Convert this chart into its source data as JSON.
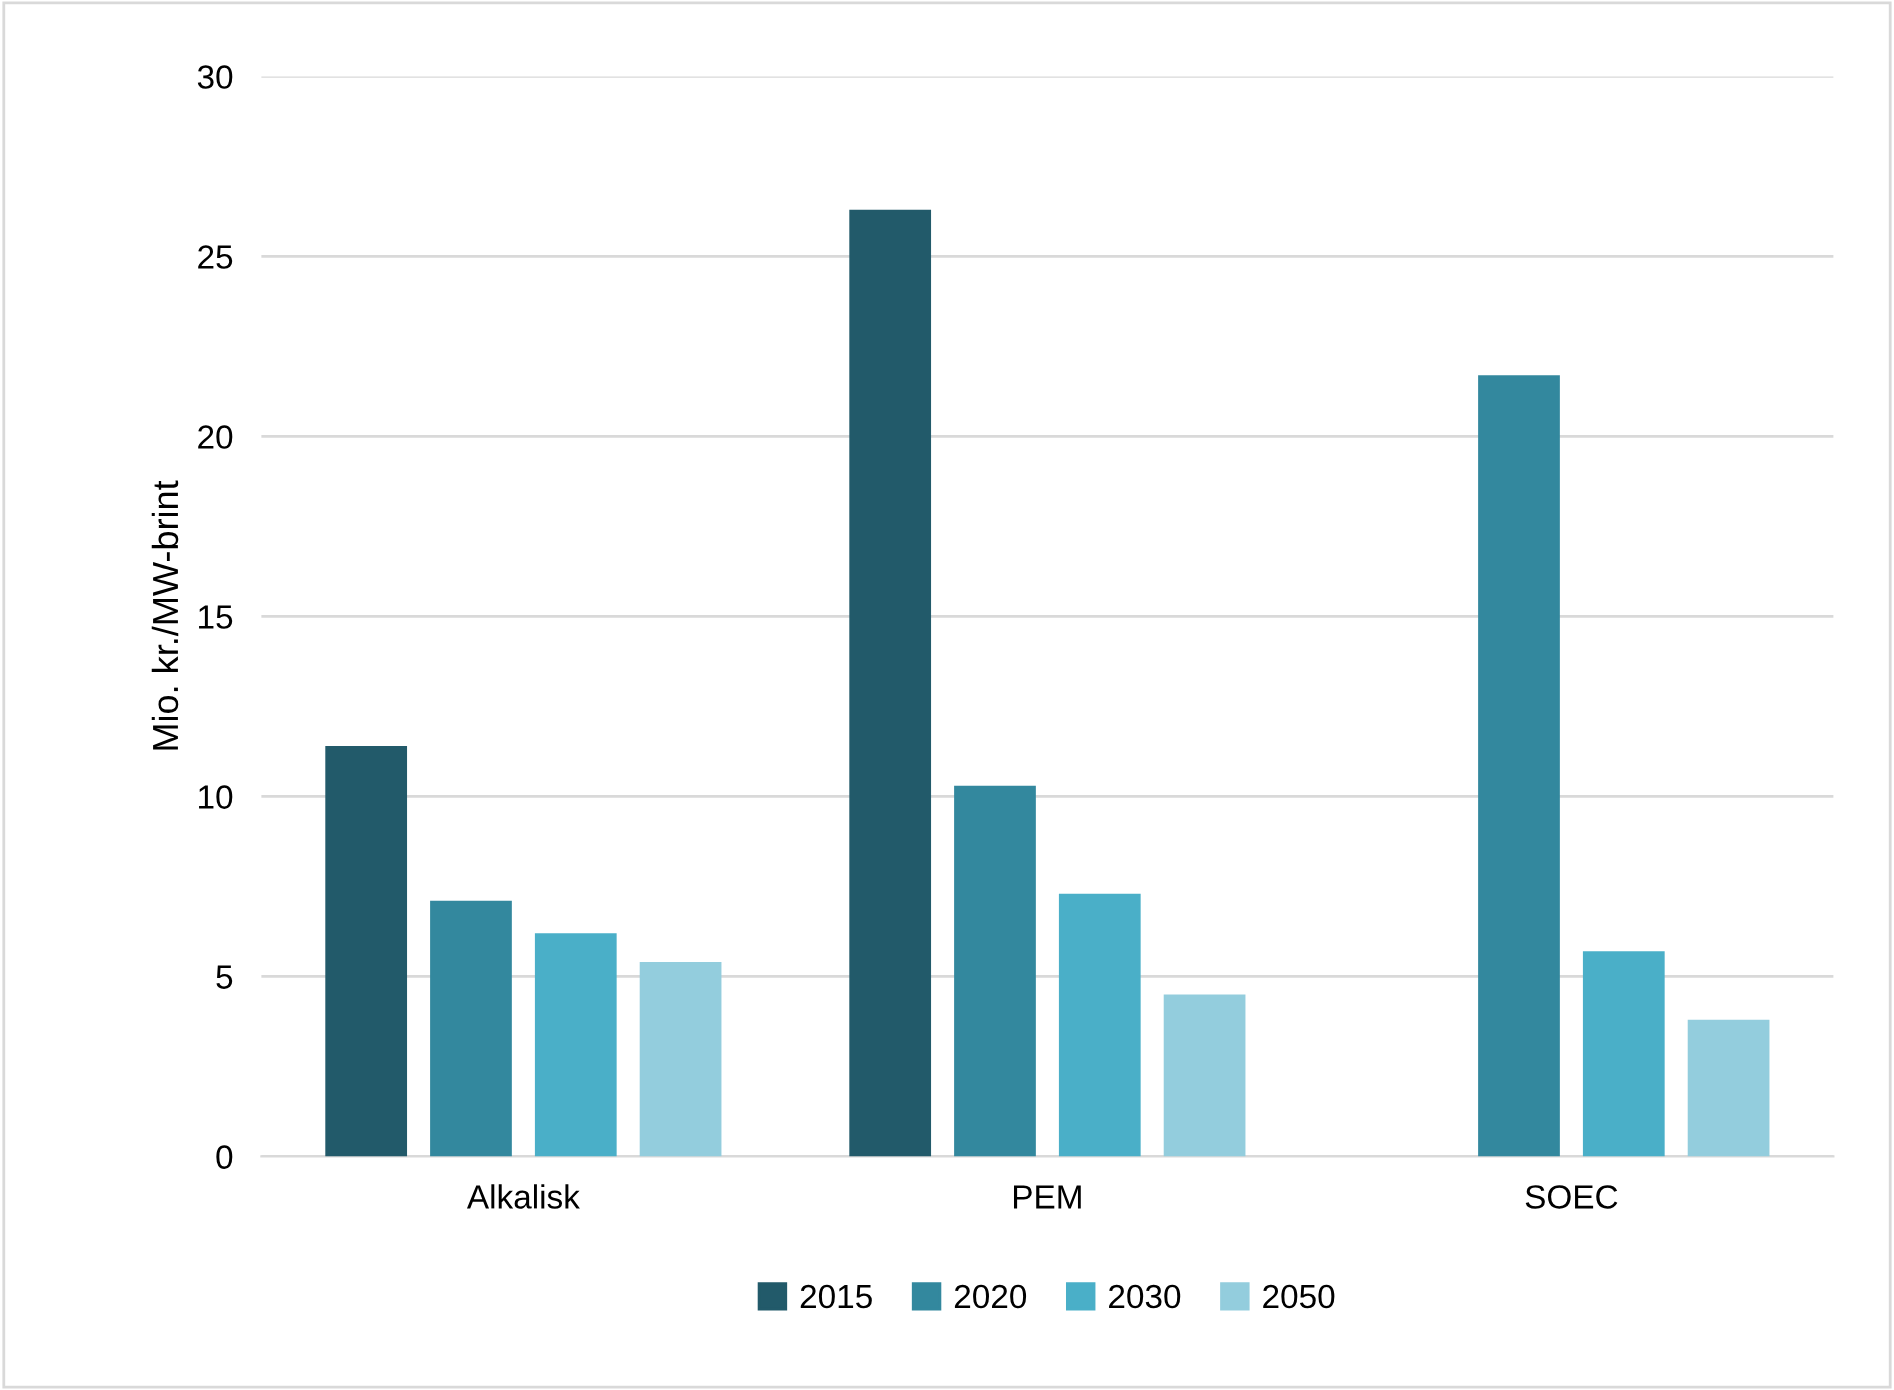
{
  "chart_data": {
    "type": "bar",
    "ylabel": "Mio. kr./MW-brint",
    "categories": [
      "Alkalisk",
      "PEM",
      "SOEC"
    ],
    "series": [
      {
        "name": "2015",
        "color": "#225a6a",
        "values": [
          11.4,
          26.3,
          null
        ]
      },
      {
        "name": "2020",
        "color": "#33889e",
        "values": [
          7.1,
          10.3,
          21.7
        ]
      },
      {
        "name": "2030",
        "color": "#4aafc8",
        "values": [
          6.2,
          7.3,
          5.7
        ]
      },
      {
        "name": "2050",
        "color": "#93cddd",
        "values": [
          5.4,
          4.5,
          3.8
        ]
      }
    ],
    "ylim": [
      0,
      30
    ],
    "yticks": [
      0,
      5,
      10,
      15,
      20,
      25,
      30
    ],
    "grid": "y",
    "legend": "bottom"
  }
}
